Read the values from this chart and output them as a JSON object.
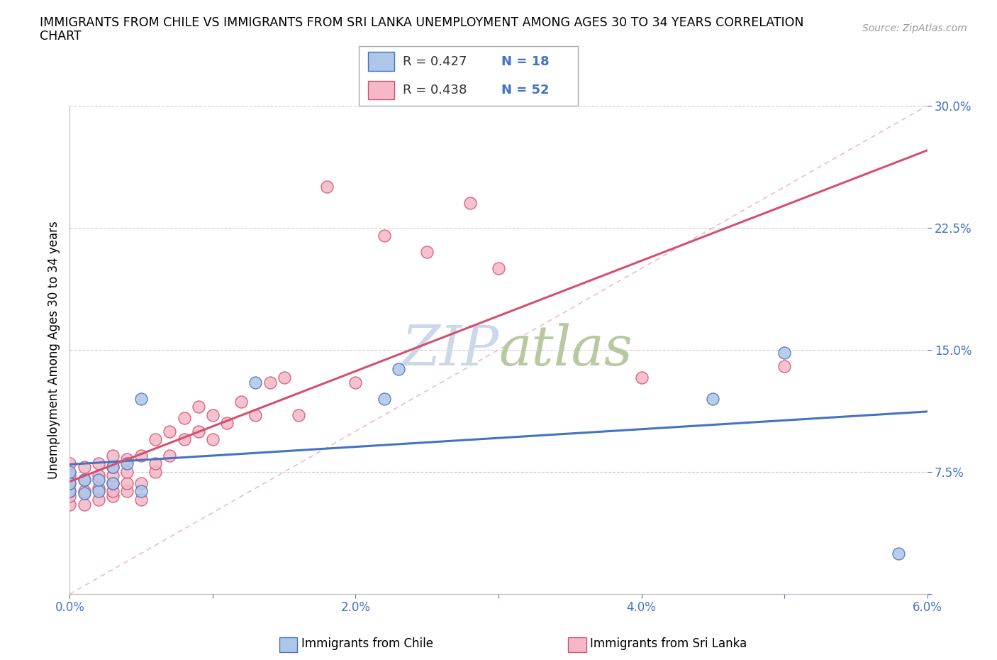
{
  "title_line1": "IMMIGRANTS FROM CHILE VS IMMIGRANTS FROM SRI LANKA UNEMPLOYMENT AMONG AGES 30 TO 34 YEARS CORRELATION",
  "title_line2": "CHART",
  "source": "Source: ZipAtlas.com",
  "ylabel": "Unemployment Among Ages 30 to 34 years",
  "xlim": [
    0.0,
    0.06
  ],
  "ylim": [
    0.0,
    0.3
  ],
  "xticks": [
    0.0,
    0.01,
    0.02,
    0.03,
    0.04,
    0.05,
    0.06
  ],
  "xticklabels": [
    "0.0%",
    "",
    "2.0%",
    "",
    "4.0%",
    "",
    "6.0%"
  ],
  "yticks": [
    0.0,
    0.075,
    0.15,
    0.225,
    0.3
  ],
  "yticklabels": [
    "",
    "7.5%",
    "15.0%",
    "22.5%",
    "30.0%"
  ],
  "chile_face_color": "#aec6e8",
  "chile_edge_color": "#4472c4",
  "srilanka_face_color": "#f4b8c8",
  "srilanka_edge_color": "#d45070",
  "chile_line_color": "#4472c4",
  "srilanka_line_color": "#d45070",
  "diagonal_color": "#d0a0b0",
  "legend_box_color": "#e8e8e8",
  "watermark_color": "#ccd8e8",
  "legend_R_chile": "R = 0.427",
  "legend_N_chile": "N = 18",
  "legend_R_srilanka": "R = 0.438",
  "legend_N_srilanka": "N = 52",
  "chile_label": "Immigrants from Chile",
  "srilanka_label": "Immigrants from Sri Lanka",
  "chile_x": [
    0.0,
    0.0,
    0.0,
    0.001,
    0.001,
    0.002,
    0.002,
    0.003,
    0.003,
    0.004,
    0.005,
    0.005,
    0.013,
    0.022,
    0.023,
    0.045,
    0.05,
    0.058
  ],
  "chile_y": [
    0.063,
    0.068,
    0.075,
    0.062,
    0.07,
    0.063,
    0.07,
    0.078,
    0.068,
    0.08,
    0.063,
    0.12,
    0.13,
    0.12,
    0.138,
    0.12,
    0.148,
    0.025
  ],
  "srilanka_x": [
    0.0,
    0.0,
    0.0,
    0.0,
    0.0,
    0.0,
    0.001,
    0.001,
    0.001,
    0.001,
    0.002,
    0.002,
    0.002,
    0.002,
    0.003,
    0.003,
    0.003,
    0.003,
    0.003,
    0.003,
    0.004,
    0.004,
    0.004,
    0.004,
    0.005,
    0.005,
    0.005,
    0.006,
    0.006,
    0.006,
    0.007,
    0.007,
    0.008,
    0.008,
    0.009,
    0.009,
    0.01,
    0.01,
    0.011,
    0.012,
    0.013,
    0.014,
    0.015,
    0.016,
    0.018,
    0.02,
    0.022,
    0.025,
    0.028,
    0.03,
    0.04,
    0.05
  ],
  "srilanka_y": [
    0.055,
    0.06,
    0.063,
    0.068,
    0.073,
    0.08,
    0.055,
    0.063,
    0.07,
    0.078,
    0.058,
    0.065,
    0.073,
    0.08,
    0.06,
    0.063,
    0.068,
    0.073,
    0.078,
    0.085,
    0.063,
    0.068,
    0.075,
    0.083,
    0.058,
    0.068,
    0.085,
    0.075,
    0.08,
    0.095,
    0.085,
    0.1,
    0.095,
    0.108,
    0.1,
    0.115,
    0.095,
    0.11,
    0.105,
    0.118,
    0.11,
    0.13,
    0.133,
    0.11,
    0.25,
    0.13,
    0.22,
    0.21,
    0.24,
    0.2,
    0.133,
    0.14
  ]
}
